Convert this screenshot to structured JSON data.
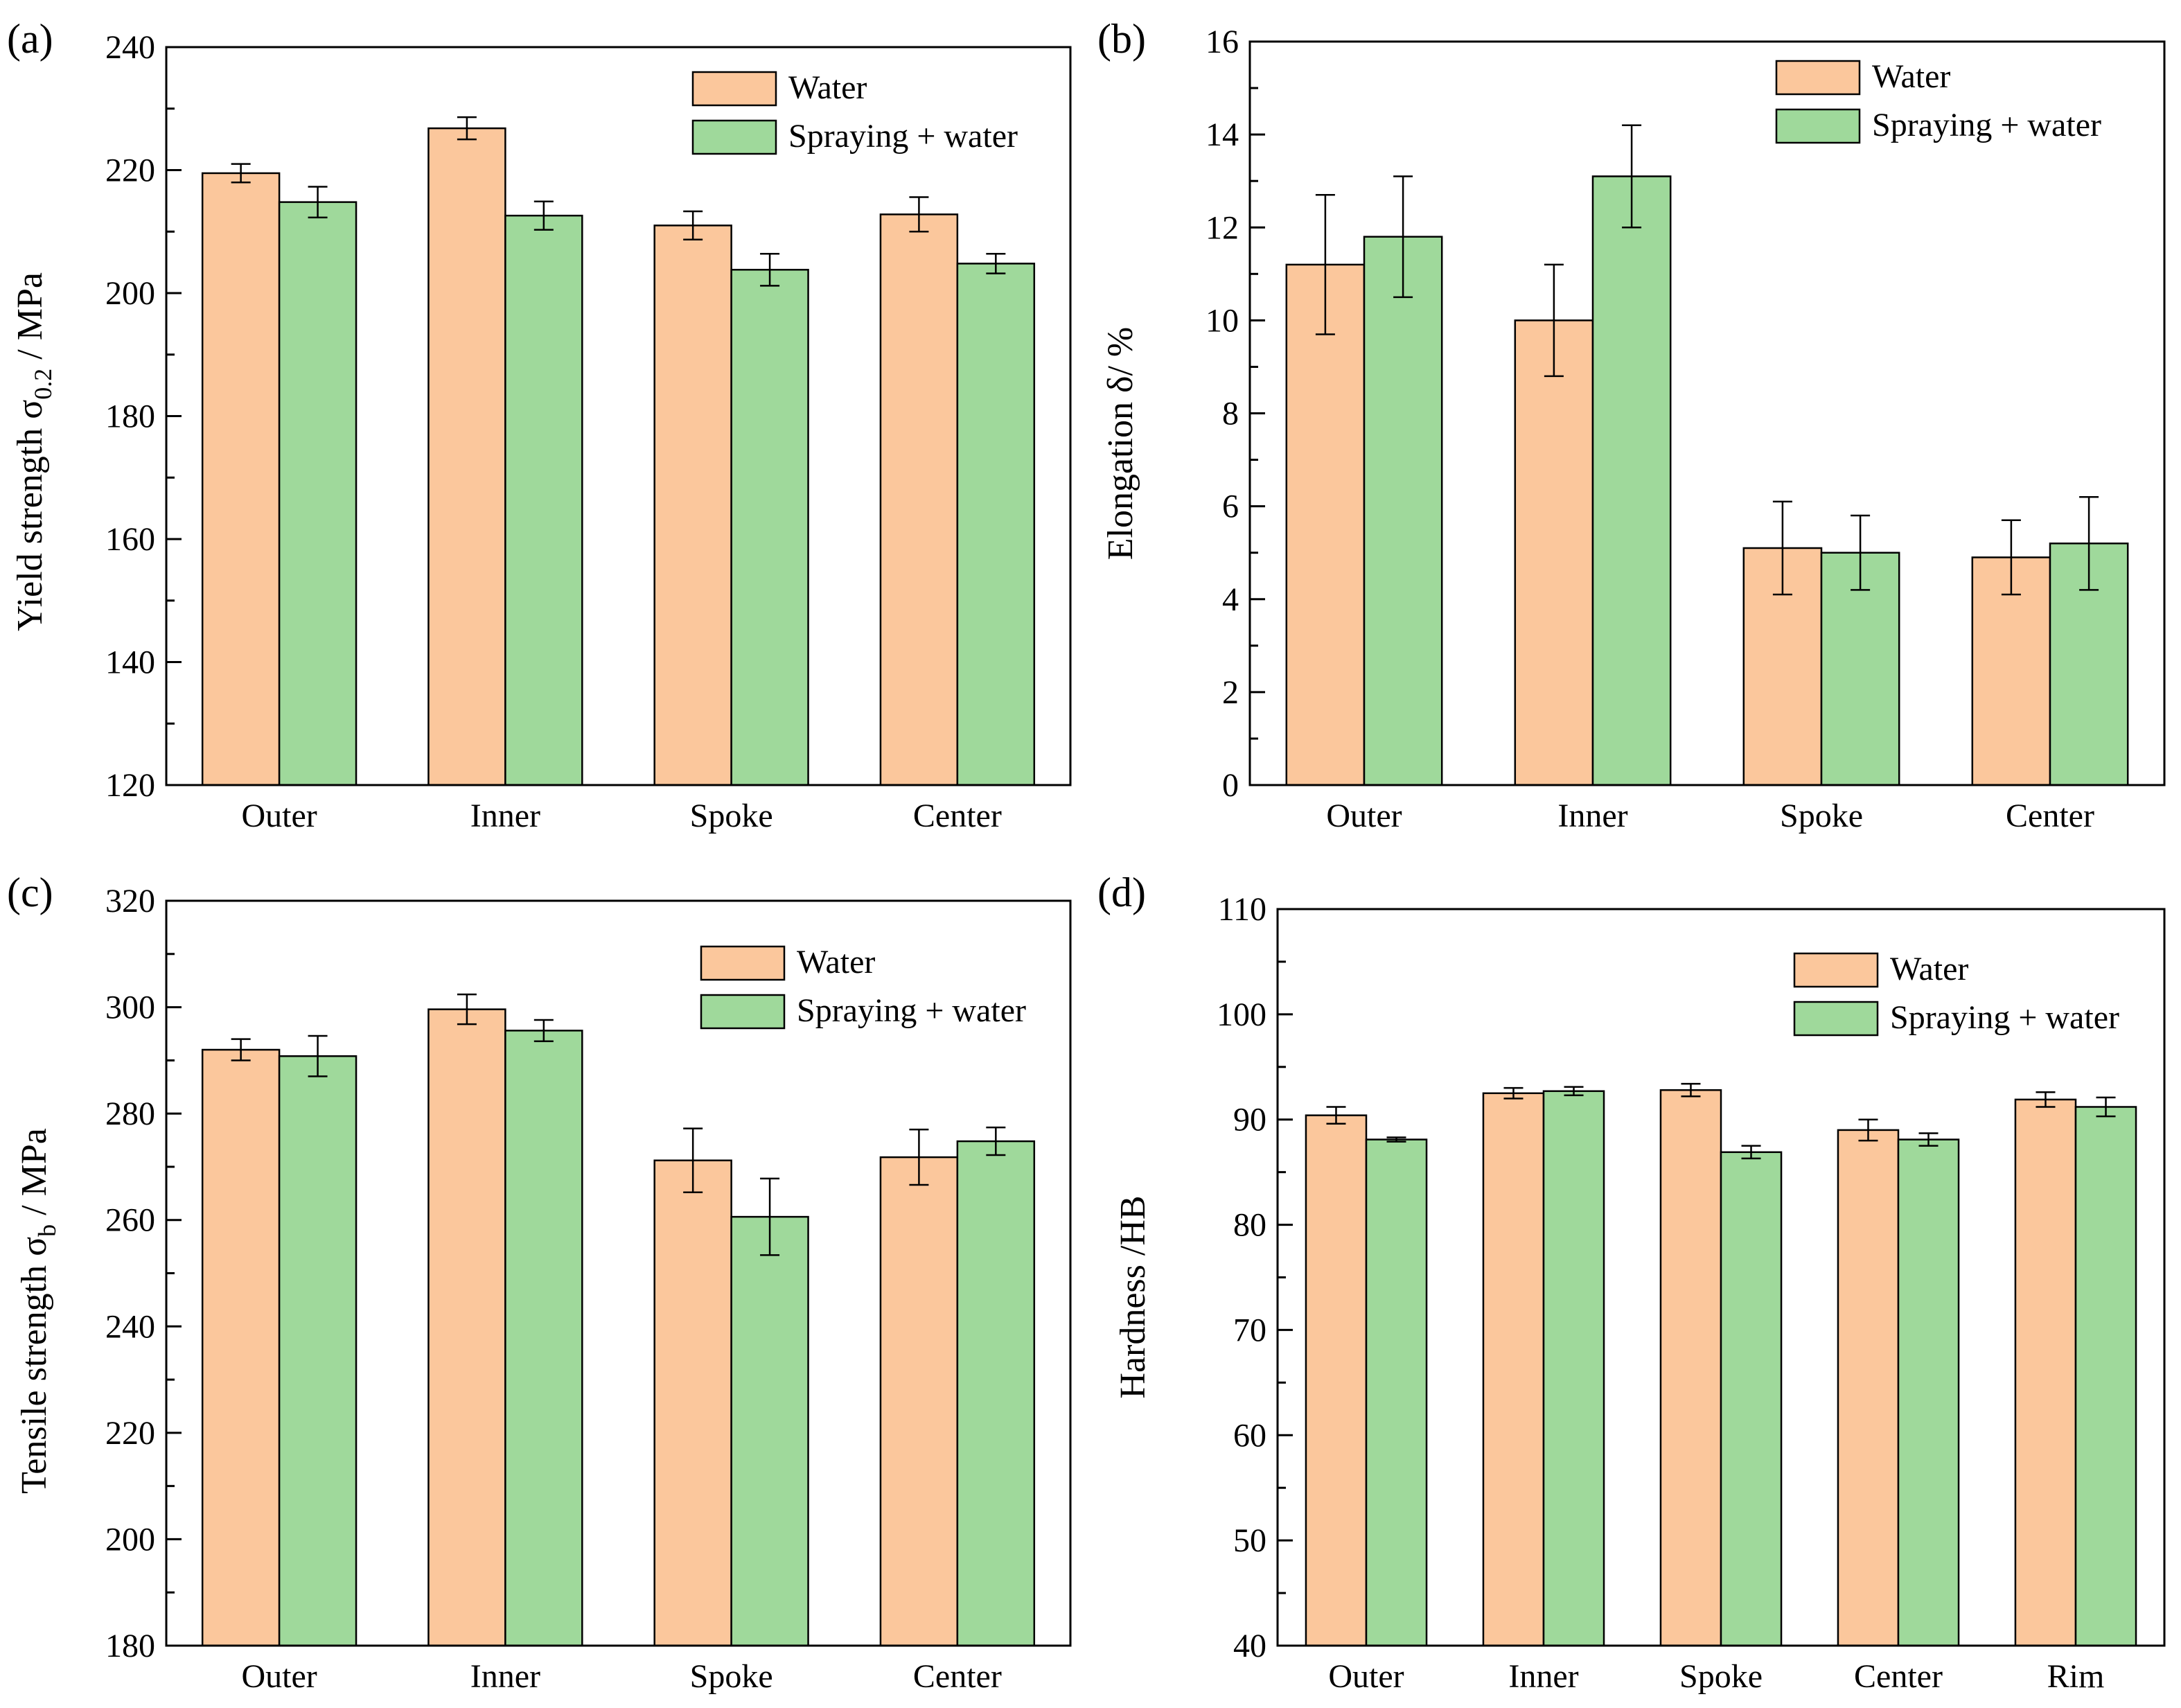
{
  "colors": {
    "water": "#fbc79c",
    "spraying_water": "#9fd99b",
    "axis": "#000000",
    "background": "#ffffff"
  },
  "chart_data": [
    {
      "id": "a",
      "panel_label": "(a)",
      "type": "bar",
      "ylabel_main": "Yield strength σ",
      "ylabel_sub": "0.2",
      "ylabel_tail": " / MPa",
      "xlabel": "",
      "ylim": [
        120,
        240
      ],
      "yticks": [
        120,
        140,
        160,
        180,
        200,
        220,
        240
      ],
      "minor_step": 10,
      "categories": [
        "Outer",
        "Inner",
        "Spoke",
        "Center"
      ],
      "legend_position": "top-right",
      "series": [
        {
          "name": "Water",
          "values": [
            219.5,
            226.8,
            211.0,
            212.8
          ],
          "errors": [
            1.5,
            1.8,
            2.3,
            2.8
          ]
        },
        {
          "name": "Spraying + water",
          "values": [
            214.8,
            212.6,
            203.8,
            204.8
          ],
          "errors": [
            2.5,
            2.3,
            2.6,
            1.6
          ]
        }
      ]
    },
    {
      "id": "b",
      "panel_label": "(b)",
      "type": "bar",
      "ylabel_main": "Elongation δ/ %",
      "ylabel_sub": "",
      "ylabel_tail": "",
      "xlabel": "",
      "ylim": [
        0,
        16
      ],
      "yticks": [
        0,
        2,
        4,
        6,
        8,
        10,
        12,
        14,
        16
      ],
      "minor_step": 1,
      "categories": [
        "Outer",
        "Inner",
        "Spoke",
        "Center"
      ],
      "legend_position": "top-right",
      "series": [
        {
          "name": "Water",
          "values": [
            11.2,
            10.0,
            5.1,
            4.9
          ],
          "errors": [
            1.5,
            1.2,
            1.0,
            0.8
          ]
        },
        {
          "name": "Spraying + water",
          "values": [
            11.8,
            13.1,
            5.0,
            5.2
          ],
          "errors": [
            1.3,
            1.1,
            0.8,
            1.0
          ]
        }
      ]
    },
    {
      "id": "c",
      "panel_label": "(c)",
      "type": "bar",
      "ylabel_main": "Tensile strength σ",
      "ylabel_sub": "b",
      "ylabel_tail": " / MPa",
      "xlabel": "",
      "ylim": [
        180,
        320
      ],
      "yticks": [
        180,
        200,
        220,
        240,
        260,
        280,
        300,
        320
      ],
      "minor_step": 10,
      "categories": [
        "Outer",
        "Inner",
        "Spoke",
        "Center"
      ],
      "legend_position": "top-right",
      "series": [
        {
          "name": "Water",
          "values": [
            292.0,
            299.6,
            271.2,
            271.8
          ],
          "errors": [
            2.0,
            2.8,
            6.0,
            5.2
          ]
        },
        {
          "name": "Spraying + water",
          "values": [
            290.8,
            295.6,
            260.6,
            274.8
          ],
          "errors": [
            3.8,
            2.0,
            7.2,
            2.6
          ]
        }
      ]
    },
    {
      "id": "d",
      "panel_label": "(d)",
      "type": "bar",
      "ylabel_main": "Hardness /HB",
      "ylabel_sub": "",
      "ylabel_tail": "",
      "xlabel": "",
      "ylim": [
        40,
        110
      ],
      "yticks": [
        40,
        50,
        60,
        70,
        80,
        90,
        100,
        110
      ],
      "minor_step": 5,
      "categories": [
        "Outer",
        "Inner",
        "Spoke",
        "Center",
        "Rim"
      ],
      "legend_position": "top-right",
      "series": [
        {
          "name": "Water",
          "values": [
            90.4,
            92.5,
            92.8,
            89.0,
            91.9
          ],
          "errors": [
            0.8,
            0.5,
            0.6,
            1.0,
            0.7
          ]
        },
        {
          "name": "Spraying + water",
          "values": [
            88.1,
            92.7,
            86.9,
            88.1,
            91.2
          ],
          "errors": [
            0.2,
            0.4,
            0.6,
            0.6,
            0.9
          ]
        }
      ]
    }
  ]
}
